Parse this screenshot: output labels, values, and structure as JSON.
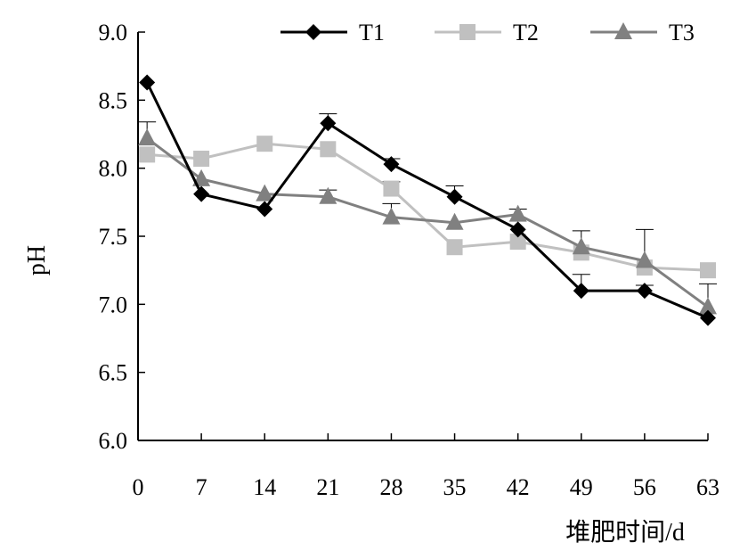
{
  "chart_data": {
    "type": "line",
    "x_ticks": [
      0,
      7,
      14,
      21,
      28,
      35,
      42,
      49,
      56,
      63
    ],
    "x_tick_labels": [
      "0",
      "7",
      "14",
      "21",
      "28",
      "35",
      "42",
      "49",
      "56",
      "63"
    ],
    "y_ticks": [
      6.0,
      6.5,
      7.0,
      7.5,
      8.0,
      8.5,
      9.0
    ],
    "y_tick_labels": [
      "6.0",
      "6.5",
      "7.0",
      "7.5",
      "8.0",
      "8.5",
      "9.0"
    ],
    "xlabel": "堆肥时间/d",
    "ylabel": "pH",
    "ylim": [
      6.0,
      9.0
    ],
    "xlim": [
      0,
      63
    ],
    "legend_position": "top",
    "grid": false,
    "series": [
      {
        "name": "T1",
        "color": "#000000",
        "marker": "diamond",
        "x": [
          1,
          7,
          14,
          21,
          28,
          35,
          42,
          49,
          56,
          63
        ],
        "values": [
          8.63,
          7.81,
          7.7,
          8.33,
          8.03,
          7.79,
          7.55,
          7.1,
          7.1,
          6.9
        ],
        "error": [
          0,
          0,
          0,
          0.07,
          0.04,
          0.08,
          0,
          0.12,
          0.04,
          0
        ]
      },
      {
        "name": "T2",
        "color": "#c0c0c0",
        "marker": "square",
        "x": [
          1,
          7,
          14,
          21,
          28,
          35,
          42,
          49,
          56,
          63
        ],
        "values": [
          8.1,
          8.07,
          8.18,
          8.14,
          7.85,
          7.42,
          7.46,
          7.38,
          7.27,
          7.25
        ],
        "error": [
          0,
          0,
          0,
          0,
          0.05,
          0,
          0,
          0,
          0,
          0
        ]
      },
      {
        "name": "T3",
        "color": "#808080",
        "marker": "triangle",
        "x": [
          1,
          7,
          14,
          21,
          28,
          35,
          42,
          49,
          56,
          63
        ],
        "values": [
          8.22,
          7.92,
          7.81,
          7.79,
          7.64,
          7.6,
          7.66,
          7.42,
          7.32,
          6.98
        ],
        "error": [
          0.12,
          0,
          0,
          0.05,
          0.1,
          0,
          0.04,
          0.12,
          0.23,
          0.17
        ]
      }
    ]
  }
}
